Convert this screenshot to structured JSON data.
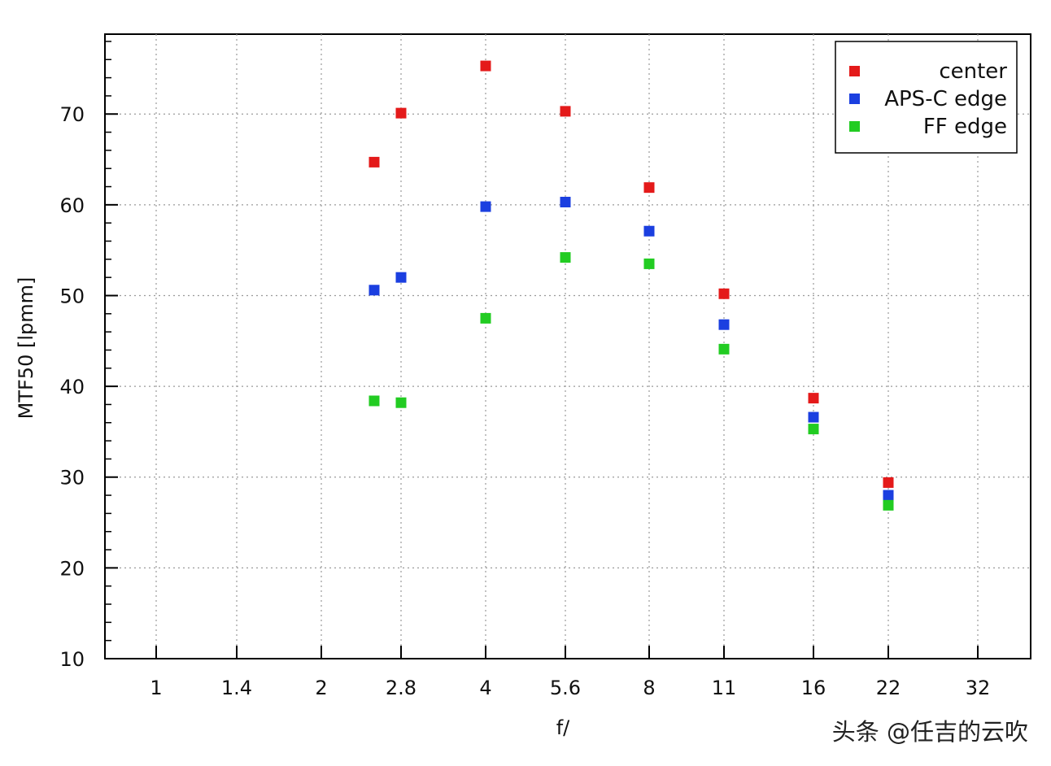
{
  "chart_data": {
    "type": "scatter",
    "title": "",
    "xlabel": "f/",
    "ylabel": "MTF50 [lpmm]",
    "x_scale": "log2",
    "x_ticks": [
      "1",
      "1.4",
      "2",
      "2.8",
      "4",
      "5.6",
      "8",
      "11",
      "16",
      "22",
      "32"
    ],
    "x_range": [
      0.8,
      40
    ],
    "y_ticks": [
      10,
      20,
      30,
      40,
      50,
      60,
      70
    ],
    "ylim": [
      10,
      78.8
    ],
    "grid": true,
    "legend_position": "top-right",
    "x": [
      2.5,
      2.8,
      4,
      5.6,
      8,
      11,
      16,
      22
    ],
    "series": [
      {
        "name": "center",
        "color": "#e41a1a",
        "values": [
          64.7,
          70.1,
          75.3,
          70.3,
          61.9,
          50.2,
          38.7,
          29.4
        ]
      },
      {
        "name": "APS-C edge",
        "color": "#1b3fe0",
        "values": [
          50.6,
          52.0,
          59.8,
          60.3,
          57.1,
          46.8,
          36.6,
          28.0
        ]
      },
      {
        "name": "FF edge",
        "color": "#22cc22",
        "values": [
          38.4,
          38.2,
          47.5,
          54.2,
          53.5,
          44.1,
          35.3,
          26.9
        ]
      }
    ]
  },
  "watermark": "头条 @任吉的云吹"
}
